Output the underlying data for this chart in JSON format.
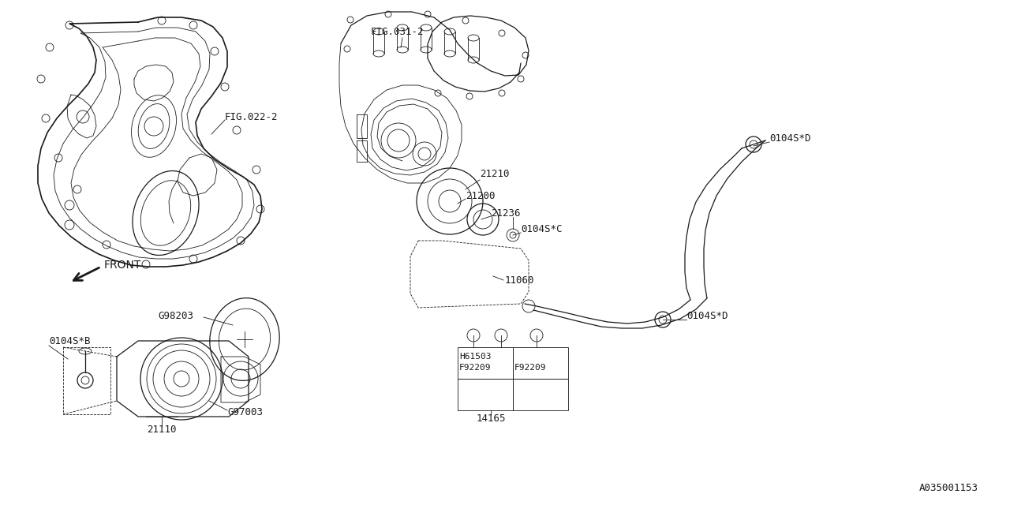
{
  "bg_color": "#ffffff",
  "line_color": "#1a1a1a",
  "diagram_number": "A035001153",
  "fig_labels": {
    "FIG022_2": "FIG.022-2",
    "FIG031_2": "FIG.031-2"
  },
  "part_labels": {
    "G98203": "G98203",
    "G97003": "G97003",
    "21110": "21110",
    "0104SB": "0104S*B",
    "21210": "21210",
    "21200": "21200",
    "21236": "21236",
    "0104SC": "0104S*C",
    "11060": "11060",
    "0104SD_top": "0104S*D",
    "0104SD_bot": "0104S*D",
    "H61503": "H61503",
    "F92209_1": "F92209",
    "F92209_2": "F92209",
    "14165": "14165",
    "FRONT": "FRONT"
  }
}
